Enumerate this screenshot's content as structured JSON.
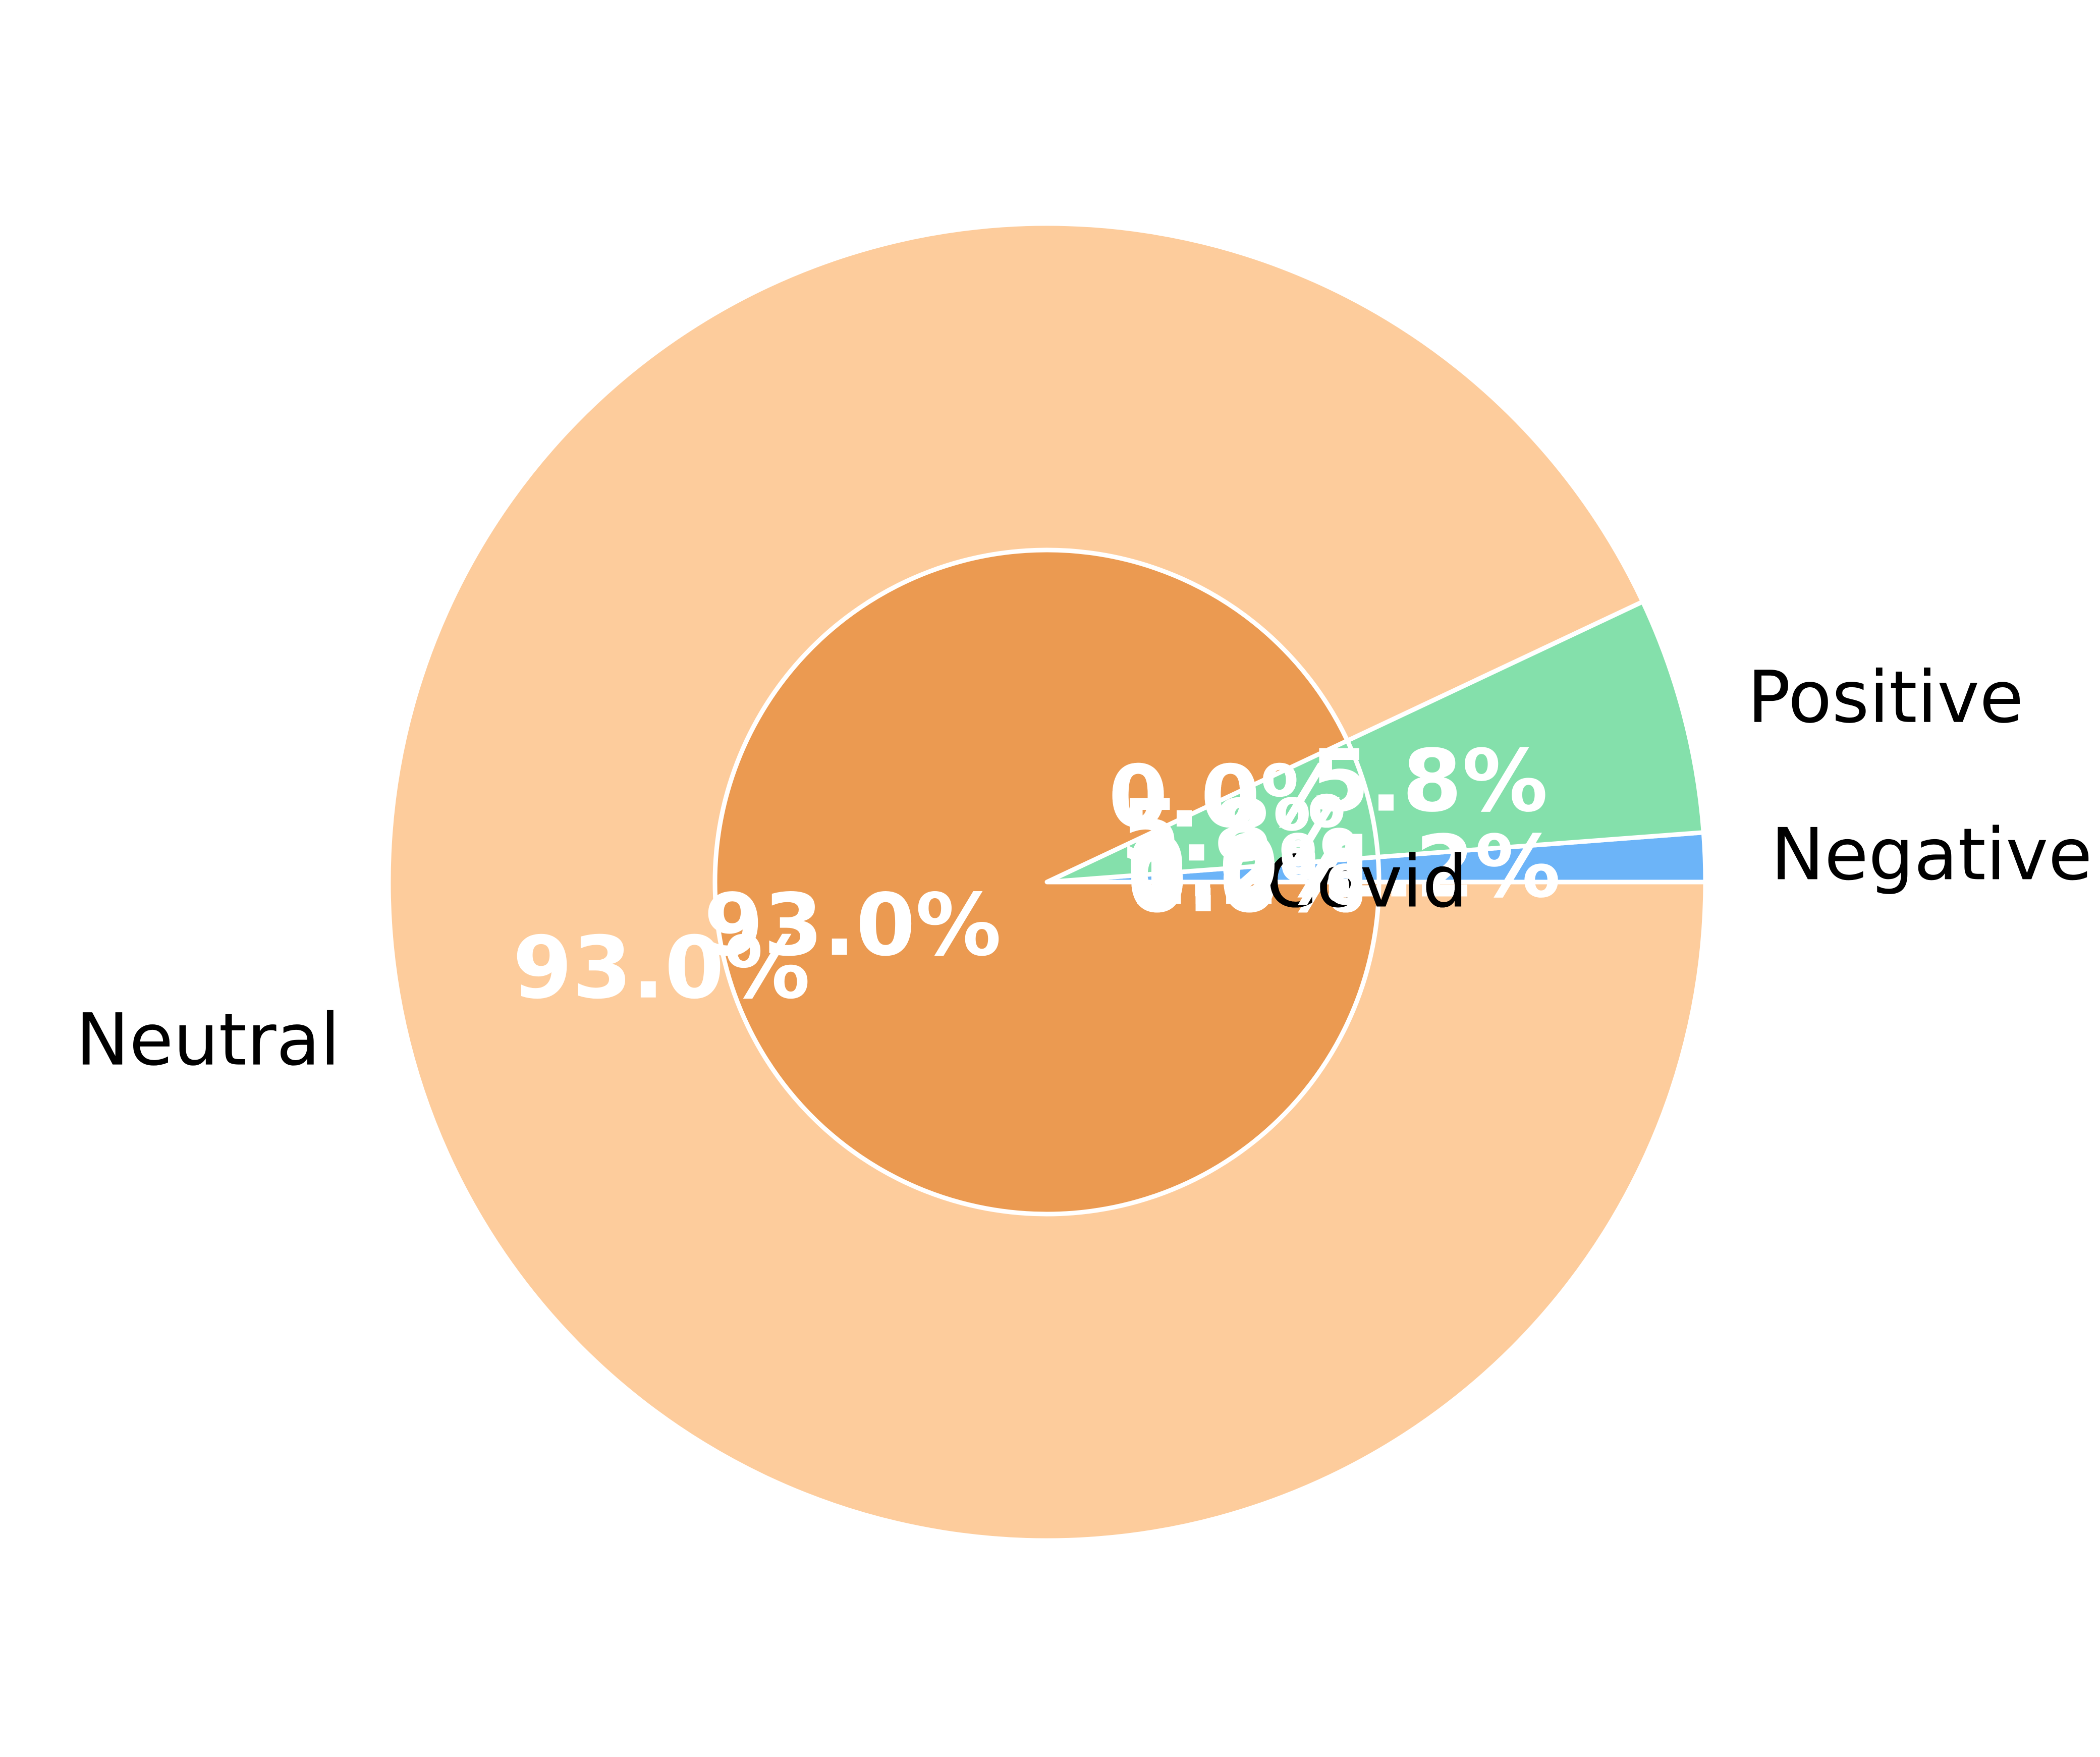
{
  "chart_data": {
    "type": "pie",
    "variant": "nested-donut",
    "start_angle_deg": 0,
    "direction": "counterclockwise",
    "wedge_edge_color": "#ffffff",
    "outer": {
      "labels": [
        "Negative",
        "Positive",
        "Neutral"
      ],
      "values": [
        1.2,
        5.8,
        93.0
      ],
      "percent_labels": [
        "1.2%",
        "5.8%",
        "93.0%"
      ],
      "colors": [
        "#6cb4f8",
        "#84e0ab",
        "#fdcc9c"
      ]
    },
    "inner": {
      "labels": [
        "Covid",
        "Covid",
        "Covid",
        "",
        "",
        "",
        "",
        "",
        ""
      ],
      "values": [
        0.0,
        0.0,
        0.0,
        1.2,
        0.0,
        5.8,
        0.0,
        0.0,
        93.0
      ],
      "percent_labels": [
        "0.0%",
        "0.0%",
        "0.0%",
        "1.2%",
        "0.0%",
        "5.8%",
        "0.0%",
        "0.0%",
        "93.0%"
      ],
      "colors": [
        "#6cb4f8",
        "#6cb4f8",
        "#6cb4f8",
        "#6cb4f8",
        "#84e0ab",
        "#84e0ab",
        "#eb9a51",
        "#eb9a51",
        "#eb9a51"
      ]
    }
  }
}
